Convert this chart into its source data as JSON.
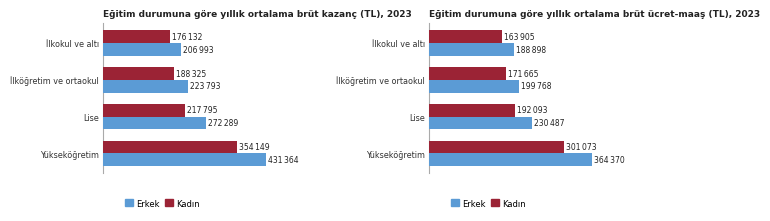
{
  "chart1": {
    "title": "Eğitim durumuna göre yıllık ortalama brüt kazanç (TL), 2023",
    "categories": [
      "İlkokul ve altı",
      "İlköğretim ve ortaokul",
      "Lise",
      "Yükseköğretim"
    ],
    "erkek": [
      206993,
      223793,
      272289,
      431364
    ],
    "kadin": [
      176132,
      188325,
      217795,
      354149
    ]
  },
  "chart2": {
    "title": "Eğitim durumuna göre yıllık ortalama brüt ücret-maaş (TL), 2023",
    "categories": [
      "İlkokul ve altı",
      "İlköğretim ve ortaokul",
      "Lise",
      "Yükseköğretim"
    ],
    "erkek": [
      188898,
      199768,
      230487,
      364370
    ],
    "kadin": [
      163905,
      171665,
      192093,
      301073
    ]
  },
  "erkek_color": "#5b9bd5",
  "kadin_color": "#9b2335",
  "background_color": "#ffffff",
  "title_fontsize": 6.5,
  "label_fontsize": 5.8,
  "value_fontsize": 5.5,
  "legend_fontsize": 6.0
}
